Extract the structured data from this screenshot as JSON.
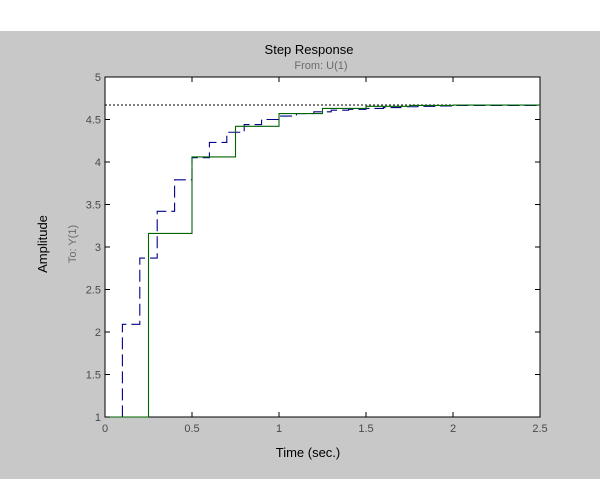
{
  "chart_data": {
    "type": "line",
    "title": "Step Response",
    "subtitle": "From: U(1)",
    "xlabel": "Time (sec.)",
    "ylabel": "Amplitude",
    "ylabel_secondary": "To: Y(1)",
    "xlim": [
      0,
      2.5
    ],
    "ylim": [
      1,
      5
    ],
    "x_ticks": [
      "0",
      "0.5",
      "1",
      "1.5",
      "2",
      "2.5"
    ],
    "y_ticks": [
      "1",
      "1.5",
      "2",
      "2.5",
      "3",
      "3.5",
      "4",
      "4.5",
      "5"
    ],
    "grid": false,
    "reference_line": {
      "y": 4.67,
      "style": "dotted",
      "color": "#000000"
    },
    "series": [
      {
        "style": "dashed-stairs",
        "color": "#00008b",
        "x": [
          0.1,
          0.2,
          0.3,
          0.4,
          0.5,
          0.6,
          0.7,
          0.8,
          0.9,
          1.0,
          1.1,
          1.2,
          1.3,
          1.4,
          1.5,
          1.6,
          1.7,
          1.8,
          1.9,
          2.0,
          2.5
        ],
        "y": [
          2.09,
          2.87,
          3.42,
          3.79,
          4.05,
          4.23,
          4.35,
          4.44,
          4.5,
          4.54,
          4.57,
          4.59,
          4.61,
          4.62,
          4.63,
          4.64,
          4.65,
          4.655,
          4.66,
          4.665,
          4.665
        ]
      },
      {
        "style": "solid-stairs",
        "color": "#006400",
        "x": [
          0.25,
          0.5,
          0.75,
          1.0,
          1.25,
          1.5,
          1.75,
          2.0,
          2.5
        ],
        "y": [
          3.16,
          4.06,
          4.42,
          4.57,
          4.63,
          4.655,
          4.665,
          4.67,
          4.67
        ]
      }
    ]
  }
}
